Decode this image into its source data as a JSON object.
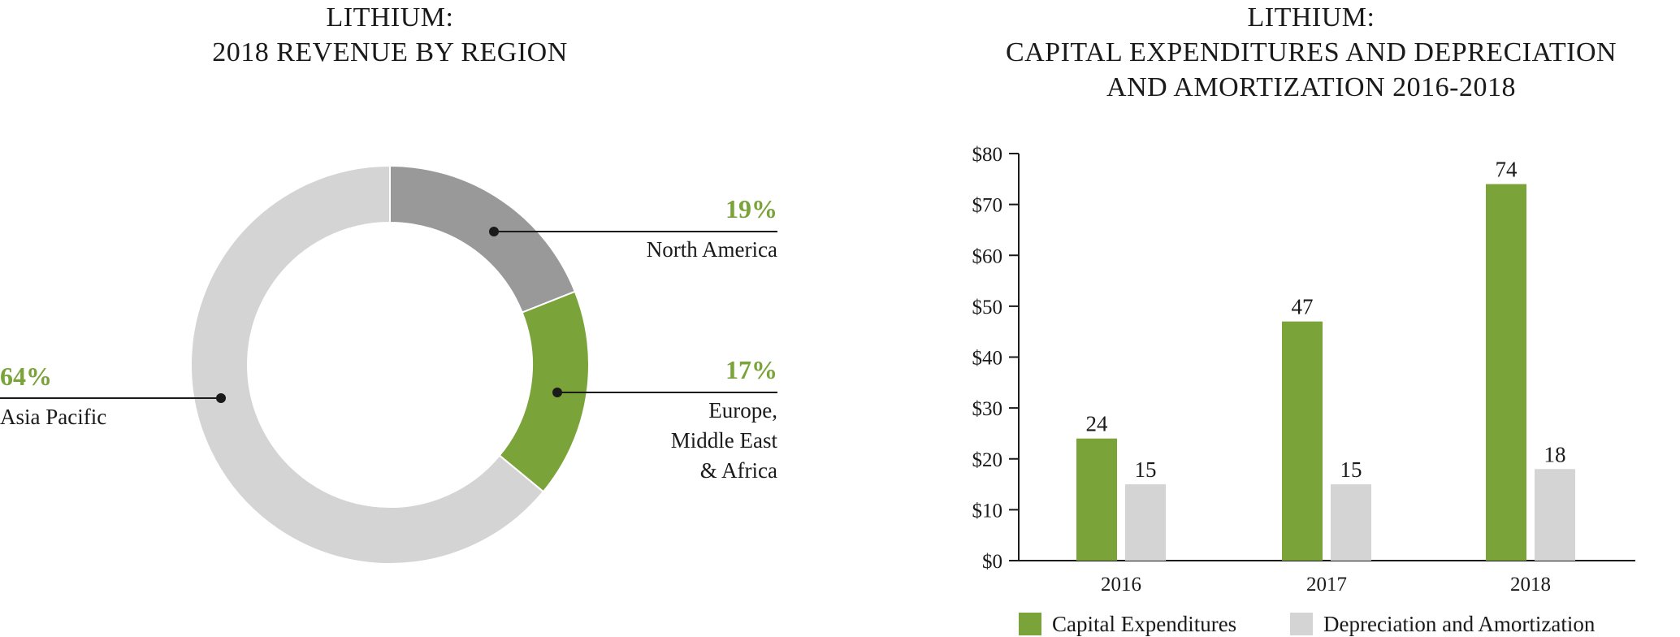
{
  "colors": {
    "green": "#7aa33a",
    "dark_gray": "#999999",
    "light_gray": "#d4d4d4",
    "text": "#1a1a1a"
  },
  "chart_data": [
    {
      "type": "pie",
      "title_lines": [
        "LITHIUM:",
        "2018 REVENUE BY REGION"
      ],
      "slices": [
        {
          "label": "North America",
          "label_lines": [
            "North America"
          ],
          "value": 19,
          "pct_label": "19%",
          "color": "#999999"
        },
        {
          "label": "Europe, Middle East & Africa",
          "label_lines": [
            "Europe,",
            "Middle East",
            "& Africa"
          ],
          "value": 17,
          "pct_label": "17%",
          "color": "#7aa33a"
        },
        {
          "label": "Asia Pacific",
          "label_lines": [
            "Asia Pacific"
          ],
          "value": 64,
          "pct_label": "64%",
          "color": "#d4d4d4"
        }
      ]
    },
    {
      "type": "bar",
      "title_lines": [
        "LITHIUM:",
        "CAPITAL EXPENDITURES AND DEPRECIATION",
        "AND AMORTIZATION 2016-2018"
      ],
      "categories": [
        "2016",
        "2017",
        "2018"
      ],
      "series": [
        {
          "name": "Capital Expenditures",
          "values": [
            24,
            47,
            74
          ],
          "color": "#7aa33a"
        },
        {
          "name": "Depreciation and Amortization",
          "values": [
            15,
            15,
            18
          ],
          "color": "#d4d4d4"
        }
      ],
      "ylim": [
        0,
        80
      ],
      "yticks": [
        0,
        10,
        20,
        30,
        40,
        50,
        60,
        70,
        80
      ],
      "ytick_labels": [
        "$0",
        "$10",
        "$20",
        "$30",
        "$40",
        "$50",
        "$60",
        "$70",
        "$80"
      ],
      "xlabel": "",
      "ylabel": "",
      "legend_position": "bottom"
    }
  ]
}
